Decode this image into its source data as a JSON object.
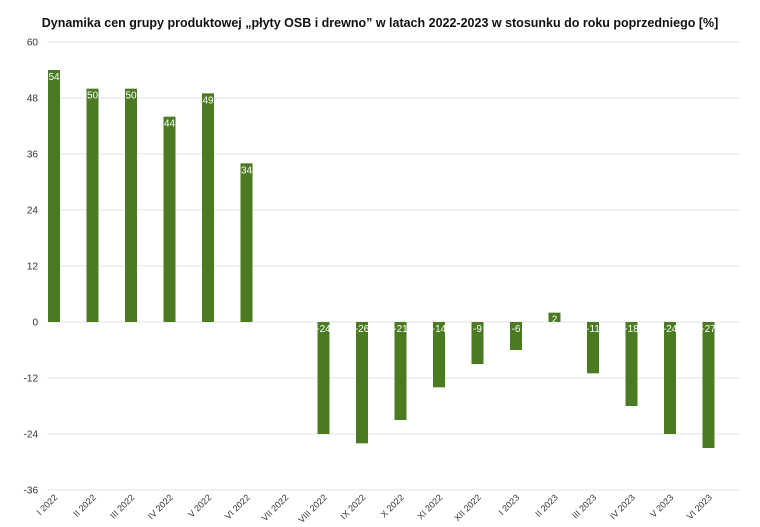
{
  "chart_data": {
    "type": "bar",
    "title": "Dynamika cen grupy produktowej „płyty OSB i drewno” w latach 2022-2023 w stosunku do roku poprzedniego [%]",
    "xlabel": "",
    "ylabel": "",
    "ylim": [
      -36,
      60
    ],
    "yticks": [
      60,
      48,
      36,
      24,
      12,
      0,
      -12,
      -24,
      -36
    ],
    "grid": true,
    "categories": [
      "I 2022",
      "II 2022",
      "III 2022",
      "IV 2022",
      "V 2022",
      "VI 2022",
      "VII 2022",
      "VIII 2022",
      "IX 2022",
      "X 2022",
      "XI 2022",
      "XII 2022",
      "I 2023",
      "II 2023",
      "III 2023",
      "IV 2023",
      "V 2023",
      "VI 2023"
    ],
    "values": [
      54,
      50,
      50,
      44,
      49,
      34,
      null,
      -24,
      -26,
      -21,
      -14,
      -9,
      -6,
      2,
      -11,
      -18,
      -24,
      -27
    ],
    "data_labels": [
      "54",
      "50",
      "50",
      "44",
      "49",
      "34",
      "",
      "-24",
      "-26",
      "-21",
      "-14",
      "-9",
      "-6",
      "2",
      "-11",
      "-18",
      "-24",
      "-27"
    ],
    "bar_color": "#4a7a21",
    "grid_color": "#e3e3e3"
  }
}
